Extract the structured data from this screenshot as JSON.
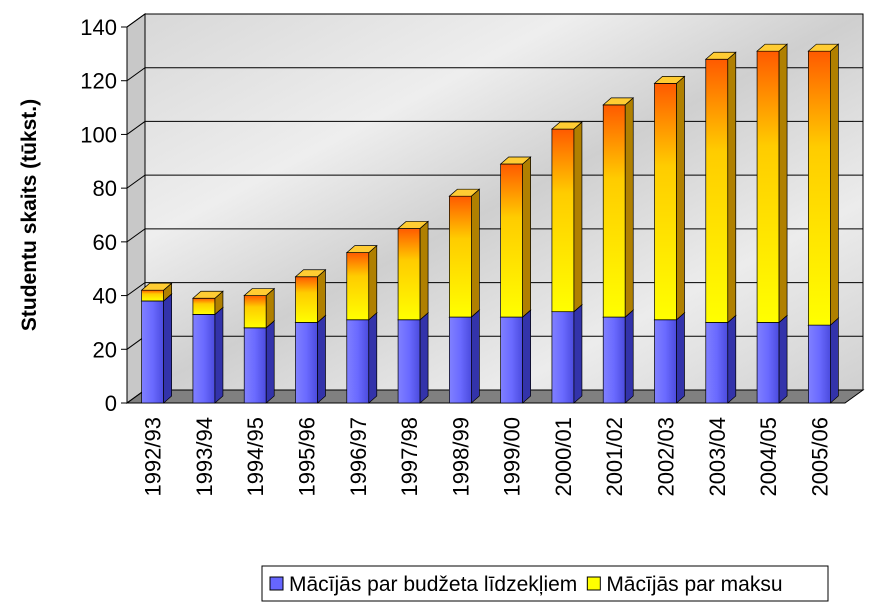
{
  "chart_data": {
    "type": "bar",
    "stacked": true,
    "three_d": true,
    "y_label": "Studentu skaits (tūkst.)",
    "categories": [
      "1992/93",
      "1993/94",
      "1994/95",
      "1995/96",
      "1996/97",
      "1997/98",
      "1998/99",
      "1999/00",
      "2000/01",
      "2001/02",
      "2002/03",
      "2003/04",
      "2004/05",
      "2005/06"
    ],
    "series": [
      {
        "name": "Mācījās par budžeta līdzekļiem",
        "color": "#6666ff",
        "values": [
          38,
          33,
          28,
          30,
          31,
          31,
          32,
          32,
          34,
          32,
          31,
          30,
          30,
          29
        ]
      },
      {
        "name": "Mācījās par maksu",
        "color": "#ffff00",
        "values": [
          4,
          6,
          12,
          17,
          25,
          34,
          45,
          57,
          68,
          79,
          88,
          98,
          101,
          102
        ]
      }
    ],
    "ylim": [
      0,
      140
    ],
    "yticks": [
      0,
      20,
      40,
      60,
      80,
      100,
      120,
      140
    ],
    "grid": true,
    "legend": "bottom"
  }
}
